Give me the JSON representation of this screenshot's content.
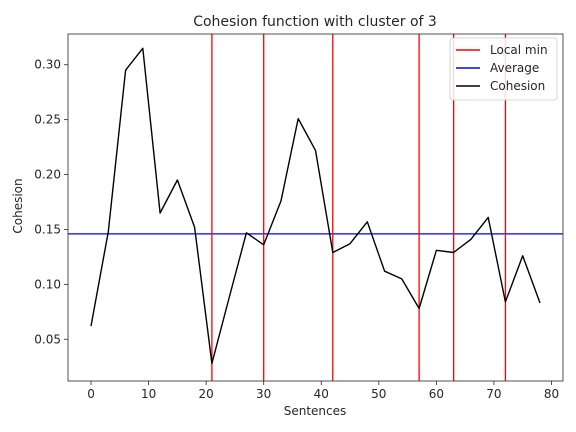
{
  "chart_data": {
    "type": "line",
    "title": "Cohesion function with cluster of 3",
    "xlabel": "Sentences",
    "ylabel": "Cohesion",
    "xlim": [
      -4,
      82
    ],
    "ylim": [
      0.012,
      0.328
    ],
    "xticks": [
      0,
      10,
      20,
      30,
      40,
      50,
      60,
      70,
      80
    ],
    "xtick_labels": [
      "0",
      "10",
      "20",
      "30",
      "40",
      "50",
      "60",
      "70",
      "80"
    ],
    "yticks": [
      0.05,
      0.1,
      0.15,
      0.2,
      0.25,
      0.3
    ],
    "ytick_labels": [
      "0.05",
      "0.10",
      "0.15",
      "0.20",
      "0.25",
      "0.30"
    ],
    "grid": false,
    "legend_position": "top-right",
    "series": [
      {
        "name": "Cohesion",
        "color": "#000000",
        "x": [
          0,
          3,
          6,
          9,
          12,
          15,
          18,
          21,
          24,
          27,
          30,
          33,
          36,
          39,
          42,
          45,
          48,
          51,
          54,
          57,
          60,
          63,
          66,
          69,
          72,
          75,
          78
        ],
        "y": [
          0.062,
          0.148,
          0.295,
          0.315,
          0.165,
          0.195,
          0.152,
          0.028,
          0.088,
          0.147,
          0.136,
          0.176,
          0.251,
          0.222,
          0.129,
          0.137,
          0.157,
          0.112,
          0.105,
          0.078,
          0.131,
          0.129,
          0.141,
          0.161,
          0.084,
          0.126,
          0.083
        ]
      }
    ],
    "average": {
      "name": "Average",
      "value": 0.146,
      "color": "#0000ff"
    },
    "local_min": {
      "name": "Local min",
      "x": [
        21,
        30,
        42,
        57,
        63,
        72
      ],
      "color": "#ff0000"
    }
  }
}
